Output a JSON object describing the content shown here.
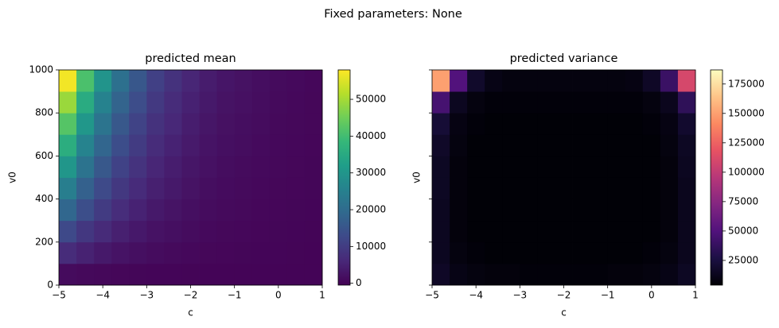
{
  "suptitle": "Fixed parameters: None",
  "chart_data": [
    {
      "type": "heatmap",
      "title": "predicted mean",
      "x_label": "c",
      "y_label": "v0",
      "xlim": [
        -5,
        1
      ],
      "ylim": [
        0,
        1000
      ],
      "xticks": [
        {
          "value": -5,
          "label": "−5"
        },
        {
          "value": -4,
          "label": "−4"
        },
        {
          "value": -3,
          "label": "−3"
        },
        {
          "value": -2,
          "label": "−2"
        },
        {
          "value": -1,
          "label": "−1"
        },
        0,
        1
      ],
      "yticks": [
        0,
        200,
        400,
        600,
        800,
        1000
      ],
      "show_yticklabels": true,
      "colormap": "viridis",
      "clim": [
        -500,
        58000
      ],
      "cbar_ticks": [
        0,
        10000,
        20000,
        30000,
        40000,
        50000
      ],
      "z": [
        [
          1140,
          820,
          590,
          420,
          310,
          220,
          160,
          110,
          80,
          60,
          50,
          30,
          20,
          20,
          10
        ],
        [
          6840,
          4920,
          3550,
          2530,
          1850,
          1300,
          960,
          680,
          480,
          340,
          270,
          210,
          140,
          100,
          70
        ],
        [
          12540,
          9020,
          6510,
          4640,
          3390,
          2380,
          1760,
          1250,
          880,
          630,
          500,
          380,
          250,
          190,
          130
        ],
        [
          18810,
          13530,
          9770,
          6960,
          5080,
          3560,
          2640,
          1880,
          1320,
          940,
          750,
          560,
          380,
          280,
          190
        ],
        [
          24510,
          17630,
          12730,
          9070,
          6620,
          4640,
          3440,
          2450,
          1720,
          1230,
          980,
          740,
          490,
          370,
          250
        ],
        [
          30210,
          21730,
          15690,
          11180,
          8160,
          5720,
          4240,
          3020,
          2120,
          1510,
          1210,
          910,
          600,
          450,
          300
        ],
        [
          35910,
          25830,
          18650,
          13290,
          9700,
          6800,
          5040,
          3590,
          2520,
          1800,
          1440,
          1080,
          720,
          540,
          360
        ],
        [
          42180,
          30340,
          21900,
          15610,
          11400,
          7990,
          5920,
          4220,
          2960,
          2110,
          1690,
          1270,
          840,
          630,
          420
        ],
        [
          49020,
          35260,
          25460,
          18150,
          13240,
          9290,
          6880,
          4900,
          3440,
          2450,
          1960,
          1470,
          980,
          740,
          490
        ],
        [
          57000,
          41000,
          29600,
          21100,
          15400,
          10800,
          8000,
          5700,
          4000,
          2850,
          2280,
          1710,
          1140,
          855,
          570
        ]
      ]
    },
    {
      "type": "heatmap",
      "title": "predicted variance",
      "x_label": "c",
      "y_label": "v0",
      "xlim": [
        -5,
        1
      ],
      "ylim": [
        0,
        1000
      ],
      "xticks": [
        {
          "value": -5,
          "label": "−5"
        },
        {
          "value": -4,
          "label": "−4"
        },
        {
          "value": -3,
          "label": "−3"
        },
        {
          "value": -2,
          "label": "−2"
        },
        {
          "value": -1,
          "label": "−1"
        },
        0,
        1
      ],
      "yticks": [
        0,
        200,
        400,
        600,
        800,
        1000
      ],
      "show_yticklabels": false,
      "colormap": "magma",
      "clim": [
        4000,
        187000
      ],
      "cbar_ticks": [
        25000,
        50000,
        75000,
        100000,
        125000,
        150000,
        175000
      ],
      "z": [
        [
          16000,
          10000,
          8000,
          7000,
          7000,
          6000,
          6000,
          6000,
          6000,
          6000,
          7000,
          7000,
          8000,
          10000,
          15000
        ],
        [
          14000,
          8000,
          6000,
          5000,
          5000,
          5000,
          5000,
          5000,
          5000,
          5000,
          5000,
          5000,
          6000,
          8000,
          13000
        ],
        [
          14000,
          7000,
          5000,
          5000,
          5000,
          5000,
          5000,
          5000,
          5000,
          5000,
          5000,
          5000,
          5000,
          7000,
          13000
        ],
        [
          14000,
          7000,
          5000,
          5000,
          5000,
          5000,
          5000,
          5000,
          5000,
          5000,
          5000,
          5000,
          5000,
          7000,
          13000
        ],
        [
          15000,
          7000,
          5000,
          5000,
          5000,
          5000,
          5000,
          5000,
          5000,
          5000,
          5000,
          5000,
          5000,
          7000,
          13000
        ],
        [
          15000,
          7000,
          5000,
          5000,
          5000,
          5000,
          5000,
          5000,
          5000,
          5000,
          5000,
          5000,
          5000,
          7000,
          14000
        ],
        [
          17000,
          8000,
          5000,
          5000,
          5000,
          5000,
          5000,
          5000,
          5000,
          5000,
          5000,
          5000,
          5000,
          8000,
          15000
        ],
        [
          22000,
          9000,
          6000,
          5000,
          5000,
          5000,
          5000,
          5000,
          5000,
          5000,
          5000,
          5000,
          6000,
          9000,
          19000
        ],
        [
          45000,
          14000,
          8000,
          6000,
          6000,
          6000,
          6000,
          6000,
          6000,
          6000,
          6000,
          6000,
          8000,
          13000,
          35000
        ],
        [
          150000,
          50000,
          18000,
          10000,
          8000,
          8000,
          8000,
          8000,
          8000,
          8000,
          8000,
          9000,
          16000,
          40000,
          110000
        ]
      ]
    }
  ]
}
